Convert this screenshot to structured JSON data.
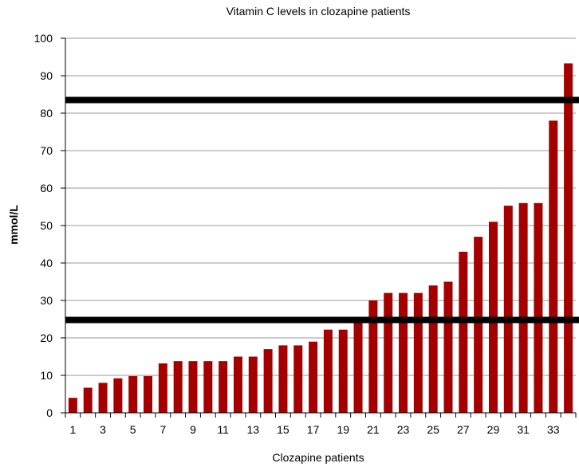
{
  "chart_data": {
    "type": "bar",
    "title": "Vitamin C levels in clozapine patients",
    "xlabel": "Clozapine patients",
    "ylabel": "mmol/L",
    "ylim": [
      0,
      100
    ],
    "yticks": [
      0,
      10,
      20,
      30,
      40,
      50,
      60,
      70,
      80,
      90,
      100
    ],
    "grid": true,
    "categories": [
      "1",
      "2",
      "3",
      "4",
      "5",
      "6",
      "7",
      "8",
      "9",
      "10",
      "11",
      "12",
      "13",
      "14",
      "15",
      "16",
      "17",
      "18",
      "19",
      "20",
      "21",
      "22",
      "23",
      "24",
      "25",
      "26",
      "27",
      "28",
      "29",
      "30",
      "31",
      "32",
      "33",
      "34"
    ],
    "x_tick_labels": [
      "1",
      "3",
      "5",
      "7",
      "9",
      "11",
      "13",
      "15",
      "17",
      "19",
      "21",
      "23",
      "25",
      "27",
      "29",
      "31",
      "33"
    ],
    "values": [
      4,
      6.7,
      8,
      9.2,
      9.8,
      9.8,
      13.2,
      13.8,
      13.8,
      13.8,
      13.8,
      15,
      15,
      17,
      18,
      18,
      19,
      22.2,
      22.2,
      25,
      30,
      32,
      32,
      32,
      34,
      35,
      43,
      47,
      51,
      55.3,
      56,
      56,
      78,
      93.3
    ],
    "bar_color": "#a50000",
    "reference_lines": [
      {
        "value": 83.5,
        "color": "#000000"
      },
      {
        "value": 24.8,
        "color": "#000000"
      }
    ]
  }
}
